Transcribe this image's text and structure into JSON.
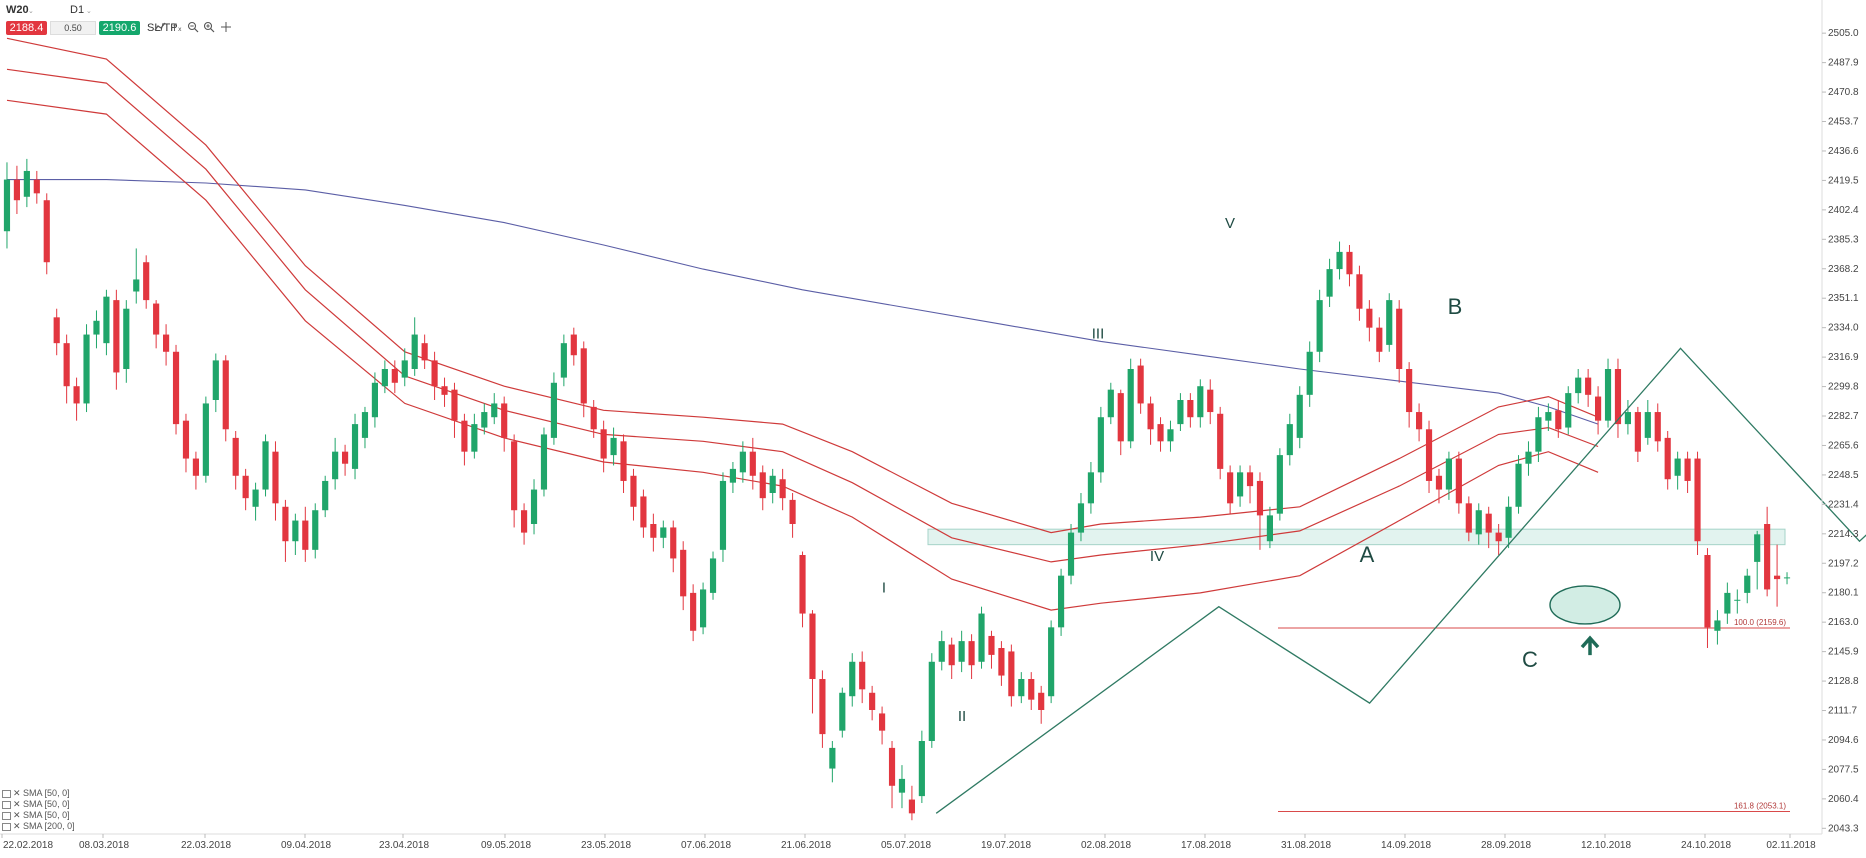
{
  "toolbar": {
    "symbol": "W20",
    "timeframe": "D1",
    "sell_price": "2188.4",
    "quantity": "0.50",
    "buy_price": "2190.6",
    "sltp_label": "SL/TP",
    "icons": [
      "line-chart-icon",
      "indicator-icon",
      "zoom-out-icon",
      "zoom-in-icon",
      "crosshair-icon"
    ]
  },
  "legend": [
    {
      "label": "SMA [50, 0]"
    },
    {
      "label": "SMA [50, 0]"
    },
    {
      "label": "SMA [50, 0]"
    },
    {
      "label": "SMA [200, 0]"
    }
  ],
  "colors": {
    "bull": "#20a56a",
    "bear": "#e2363f",
    "sma50": "#cf3a3a",
    "sma200": "#5b5ea6",
    "wave_line": "#2f7a63",
    "abc_line": "#7a2f3a",
    "zone_fill": "#dff2ee",
    "zone_border": "#9ccfc3",
    "fib_line": "#d94a4a"
  },
  "chart_data": {
    "type": "candlestick",
    "y_ticks": [
      "2505.0",
      "2487.9",
      "2470.8",
      "2453.7",
      "2436.6",
      "2419.5",
      "2402.4",
      "2385.3",
      "2368.2",
      "2351.1",
      "2334.0",
      "2316.9",
      "2299.8",
      "2282.7",
      "2265.6",
      "2248.5",
      "2231.4",
      "2214.3",
      "2197.2",
      "2180.1",
      "2163.0",
      "2145.9",
      "2128.8",
      "2111.7",
      "2094.6",
      "2077.5",
      "2060.4",
      "2043.3"
    ],
    "ylim": [
      2040,
      2508
    ],
    "x_ticks": [
      "22.02.2018",
      "08.03.2018",
      "22.03.2018",
      "09.04.2018",
      "23.04.2018",
      "09.05.2018",
      "23.05.2018",
      "07.06.2018",
      "21.06.2018",
      "05.07.2018",
      "19.07.2018",
      "02.08.2018",
      "17.08.2018",
      "31.08.2018",
      "14.09.2018",
      "28.09.2018",
      "12.10.2018",
      "24.10.2018",
      "02.11.2018"
    ],
    "candles": [
      [
        2390,
        2420,
        2380,
        2430
      ],
      [
        2420,
        2408,
        2400,
        2428
      ],
      [
        2410,
        2425,
        2404,
        2432
      ],
      [
        2420,
        2412,
        2406,
        2425
      ],
      [
        2408,
        2372,
        2365,
        2412
      ],
      [
        2340,
        2325,
        2318,
        2345
      ],
      [
        2325,
        2300,
        2290,
        2330
      ],
      [
        2300,
        2290,
        2280,
        2305
      ],
      [
        2290,
        2330,
        2285,
        2336
      ],
      [
        2330,
        2338,
        2322,
        2344
      ],
      [
        2325,
        2352,
        2318,
        2356
      ],
      [
        2350,
        2308,
        2298,
        2356
      ],
      [
        2310,
        2345,
        2302,
        2350
      ],
      [
        2355,
        2362,
        2348,
        2380
      ],
      [
        2372,
        2350,
        2345,
        2376
      ],
      [
        2348,
        2330,
        2322,
        2350
      ],
      [
        2330,
        2320,
        2312,
        2336
      ],
      [
        2320,
        2278,
        2272,
        2324
      ],
      [
        2280,
        2258,
        2250,
        2284
      ],
      [
        2258,
        2248,
        2240,
        2262
      ],
      [
        2248,
        2290,
        2244,
        2294
      ],
      [
        2292,
        2315,
        2285,
        2319
      ],
      [
        2315,
        2275,
        2268,
        2318
      ],
      [
        2270,
        2248,
        2240,
        2274
      ],
      [
        2248,
        2235,
        2228,
        2252
      ],
      [
        2230,
        2240,
        2222,
        2244
      ],
      [
        2240,
        2268,
        2236,
        2272
      ],
      [
        2262,
        2232,
        2222,
        2268
      ],
      [
        2230,
        2210,
        2198,
        2234
      ],
      [
        2210,
        2222,
        2202,
        2226
      ],
      [
        2222,
        2205,
        2198,
        2230
      ],
      [
        2205,
        2228,
        2200,
        2232
      ],
      [
        2228,
        2245,
        2224,
        2248
      ],
      [
        2246,
        2262,
        2240,
        2270
      ],
      [
        2262,
        2255,
        2248,
        2266
      ],
      [
        2252,
        2278,
        2246,
        2284
      ],
      [
        2270,
        2285,
        2264,
        2288
      ],
      [
        2282,
        2302,
        2276,
        2308
      ],
      [
        2300,
        2310,
        2296,
        2315
      ],
      [
        2310,
        2302,
        2296,
        2315
      ],
      [
        2305,
        2315,
        2300,
        2322
      ],
      [
        2310,
        2330,
        2306,
        2340
      ],
      [
        2325,
        2315,
        2310,
        2330
      ],
      [
        2315,
        2300,
        2292,
        2320
      ],
      [
        2300,
        2295,
        2288,
        2305
      ],
      [
        2298,
        2280,
        2270,
        2302
      ],
      [
        2280,
        2262,
        2254,
        2284
      ],
      [
        2262,
        2278,
        2258,
        2284
      ],
      [
        2276,
        2285,
        2272,
        2290
      ],
      [
        2282,
        2290,
        2278,
        2296
      ],
      [
        2290,
        2270,
        2262,
        2294
      ],
      [
        2268,
        2228,
        2218,
        2272
      ],
      [
        2228,
        2215,
        2208,
        2232
      ],
      [
        2220,
        2240,
        2214,
        2246
      ],
      [
        2240,
        2272,
        2236,
        2276
      ],
      [
        2270,
        2302,
        2266,
        2308
      ],
      [
        2305,
        2325,
        2300,
        2330
      ],
      [
        2330,
        2318,
        2312,
        2334
      ],
      [
        2322,
        2290,
        2282,
        2326
      ],
      [
        2288,
        2275,
        2270,
        2292
      ],
      [
        2275,
        2258,
        2250,
        2280
      ],
      [
        2260,
        2270,
        2254,
        2276
      ],
      [
        2268,
        2245,
        2238,
        2272
      ],
      [
        2248,
        2230,
        2222,
        2252
      ],
      [
        2236,
        2218,
        2212,
        2240
      ],
      [
        2220,
        2212,
        2204,
        2226
      ],
      [
        2212,
        2218,
        2206,
        2222
      ],
      [
        2218,
        2200,
        2192,
        2222
      ],
      [
        2205,
        2178,
        2170,
        2210
      ],
      [
        2180,
        2158,
        2152,
        2185
      ],
      [
        2160,
        2182,
        2156,
        2186
      ],
      [
        2180,
        2200,
        2176,
        2204
      ],
      [
        2205,
        2245,
        2198,
        2250
      ],
      [
        2244,
        2252,
        2238,
        2256
      ],
      [
        2250,
        2262,
        2244,
        2268
      ],
      [
        2262,
        2248,
        2240,
        2270
      ],
      [
        2250,
        2235,
        2228,
        2254
      ],
      [
        2238,
        2248,
        2232,
        2252
      ],
      [
        2246,
        2235,
        2228,
        2252
      ],
      [
        2234,
        2220,
        2212,
        2238
      ],
      [
        2202,
        2168,
        2160,
        2204
      ],
      [
        2168,
        2130,
        2110,
        2170
      ],
      [
        2130,
        2098,
        2090,
        2135
      ],
      [
        2078,
        2090,
        2070,
        2094
      ],
      [
        2100,
        2122,
        2096,
        2125
      ],
      [
        2120,
        2140,
        2114,
        2145
      ],
      [
        2140,
        2124,
        2116,
        2146
      ],
      [
        2122,
        2112,
        2106,
        2126
      ],
      [
        2110,
        2100,
        2092,
        2114
      ],
      [
        2090,
        2068,
        2055,
        2094
      ],
      [
        2064,
        2072,
        2055,
        2080
      ],
      [
        2060,
        2052,
        2048,
        2068
      ],
      [
        2062,
        2094,
        2058,
        2100
      ],
      [
        2094,
        2140,
        2090,
        2145
      ],
      [
        2140,
        2152,
        2135,
        2158
      ],
      [
        2150,
        2138,
        2130,
        2154
      ],
      [
        2140,
        2152,
        2134,
        2158
      ],
      [
        2152,
        2138,
        2130,
        2156
      ],
      [
        2140,
        2168,
        2136,
        2172
      ],
      [
        2155,
        2144,
        2136,
        2158
      ],
      [
        2148,
        2132,
        2126,
        2152
      ],
      [
        2146,
        2120,
        2114,
        2150
      ],
      [
        2120,
        2130,
        2116,
        2134
      ],
      [
        2130,
        2118,
        2112,
        2134
      ],
      [
        2122,
        2112,
        2104,
        2126
      ],
      [
        2120,
        2160,
        2116,
        2164
      ],
      [
        2160,
        2190,
        2155,
        2194
      ],
      [
        2190,
        2215,
        2185,
        2220
      ],
      [
        2215,
        2232,
        2210,
        2238
      ],
      [
        2232,
        2250,
        2226,
        2256
      ],
      [
        2250,
        2282,
        2244,
        2288
      ],
      [
        2282,
        2298,
        2278,
        2302
      ],
      [
        2296,
        2268,
        2260,
        2298
      ],
      [
        2268,
        2310,
        2264,
        2316
      ],
      [
        2312,
        2290,
        2284,
        2316
      ],
      [
        2290,
        2275,
        2266,
        2294
      ],
      [
        2278,
        2268,
        2262,
        2282
      ],
      [
        2268,
        2275,
        2262,
        2280
      ],
      [
        2278,
        2292,
        2274,
        2296
      ],
      [
        2292,
        2282,
        2276,
        2296
      ],
      [
        2282,
        2300,
        2276,
        2304
      ],
      [
        2298,
        2285,
        2278,
        2304
      ],
      [
        2284,
        2252,
        2246,
        2288
      ],
      [
        2250,
        2232,
        2226,
        2254
      ],
      [
        2236,
        2250,
        2230,
        2254
      ],
      [
        2250,
        2242,
        2232,
        2254
      ],
      [
        2245,
        2225,
        2205,
        2250
      ],
      [
        2210,
        2225,
        2206,
        2230
      ],
      [
        2226,
        2260,
        2222,
        2264
      ],
      [
        2260,
        2278,
        2254,
        2284
      ],
      [
        2270,
        2295,
        2264,
        2300
      ],
      [
        2295,
        2320,
        2288,
        2326
      ],
      [
        2320,
        2350,
        2314,
        2356
      ],
      [
        2352,
        2368,
        2346,
        2374
      ],
      [
        2368,
        2378,
        2362,
        2384
      ],
      [
        2378,
        2365,
        2358,
        2382
      ],
      [
        2365,
        2345,
        2338,
        2370
      ],
      [
        2345,
        2334,
        2326,
        2350
      ],
      [
        2334,
        2320,
        2314,
        2340
      ],
      [
        2324,
        2350,
        2320,
        2354
      ],
      [
        2345,
        2310,
        2302,
        2350
      ],
      [
        2310,
        2285,
        2276,
        2314
      ],
      [
        2285,
        2275,
        2268,
        2290
      ],
      [
        2275,
        2245,
        2238,
        2280
      ],
      [
        2248,
        2240,
        2232,
        2252
      ],
      [
        2240,
        2258,
        2234,
        2262
      ],
      [
        2258,
        2232,
        2226,
        2262
      ],
      [
        2232,
        2215,
        2210,
        2236
      ],
      [
        2214,
        2228,
        2208,
        2232
      ],
      [
        2226,
        2215,
        2206,
        2230
      ],
      [
        2215,
        2210,
        2202,
        2220
      ],
      [
        2212,
        2230,
        2206,
        2236
      ],
      [
        2230,
        2255,
        2226,
        2260
      ],
      [
        2255,
        2262,
        2248,
        2268
      ],
      [
        2262,
        2282,
        2256,
        2288
      ],
      [
        2280,
        2285,
        2274,
        2290
      ],
      [
        2286,
        2275,
        2270,
        2292
      ],
      [
        2276,
        2296,
        2272,
        2300
      ],
      [
        2296,
        2305,
        2290,
        2310
      ],
      [
        2305,
        2295,
        2288,
        2310
      ],
      [
        2294,
        2280,
        2272,
        2300
      ],
      [
        2280,
        2310,
        2276,
        2316
      ],
      [
        2310,
        2278,
        2270,
        2316
      ],
      [
        2278,
        2285,
        2272,
        2292
      ],
      [
        2285,
        2262,
        2256,
        2288
      ],
      [
        2270,
        2285,
        2266,
        2292
      ],
      [
        2285,
        2268,
        2262,
        2290
      ],
      [
        2270,
        2246,
        2240,
        2274
      ],
      [
        2248,
        2258,
        2240,
        2262
      ],
      [
        2258,
        2245,
        2238,
        2262
      ],
      [
        2258,
        2210,
        2202,
        2262
      ],
      [
        2202,
        2160,
        2148,
        2206
      ],
      [
        2158,
        2164,
        2150,
        2170
      ],
      [
        2168,
        2180,
        2162,
        2186
      ],
      [
        2176,
        2176,
        2168,
        2182
      ],
      [
        2180,
        2190,
        2174,
        2194
      ],
      [
        2198,
        2214,
        2182,
        2216
      ],
      [
        2220,
        2182,
        2178,
        2230
      ],
      [
        2190,
        2188,
        2172,
        2208
      ],
      [
        2189,
        2189,
        2185,
        2192
      ]
    ],
    "series": [
      {
        "name": "SMA [50, 0]",
        "type": "line",
        "key": "sma50_upper"
      },
      {
        "name": "SMA [50, 0]",
        "type": "line",
        "key": "sma50_mid"
      },
      {
        "name": "SMA [50, 0]",
        "type": "line",
        "key": "sma50_lower"
      },
      {
        "name": "SMA [200, 0]",
        "type": "line",
        "key": "sma200"
      }
    ],
    "sma200": [
      [
        0,
        2420
      ],
      [
        10,
        2420
      ],
      [
        20,
        2418
      ],
      [
        30,
        2414
      ],
      [
        40,
        2405
      ],
      [
        50,
        2395
      ],
      [
        60,
        2382
      ],
      [
        70,
        2368
      ],
      [
        80,
        2356
      ],
      [
        90,
        2346
      ],
      [
        100,
        2336
      ],
      [
        110,
        2326
      ],
      [
        120,
        2318
      ],
      [
        130,
        2310
      ],
      [
        140,
        2303
      ],
      [
        150,
        2296
      ],
      [
        155,
        2288
      ],
      [
        160,
        2278
      ]
    ],
    "sma50_upper": [
      [
        0,
        2502
      ],
      [
        10,
        2490
      ],
      [
        20,
        2440
      ],
      [
        30,
        2370
      ],
      [
        40,
        2320
      ],
      [
        50,
        2300
      ],
      [
        60,
        2286
      ],
      [
        70,
        2282
      ],
      [
        78,
        2278
      ],
      [
        85,
        2262
      ],
      [
        95,
        2232
      ],
      [
        105,
        2215
      ],
      [
        110,
        2220
      ],
      [
        120,
        2224
      ],
      [
        130,
        2230
      ],
      [
        140,
        2258
      ],
      [
        150,
        2288
      ],
      [
        155,
        2294
      ],
      [
        160,
        2282
      ]
    ],
    "sma50_mid": [
      [
        0,
        2484
      ],
      [
        10,
        2476
      ],
      [
        20,
        2426
      ],
      [
        30,
        2356
      ],
      [
        40,
        2306
      ],
      [
        50,
        2286
      ],
      [
        60,
        2272
      ],
      [
        70,
        2268
      ],
      [
        78,
        2262
      ],
      [
        85,
        2244
      ],
      [
        95,
        2212
      ],
      [
        105,
        2198
      ],
      [
        110,
        2202
      ],
      [
        120,
        2208
      ],
      [
        130,
        2216
      ],
      [
        140,
        2242
      ],
      [
        150,
        2272
      ],
      [
        155,
        2276
      ],
      [
        160,
        2265
      ]
    ],
    "sma50_lower": [
      [
        0,
        2466
      ],
      [
        10,
        2458
      ],
      [
        20,
        2408
      ],
      [
        30,
        2338
      ],
      [
        40,
        2290
      ],
      [
        50,
        2270
      ],
      [
        60,
        2256
      ],
      [
        70,
        2250
      ],
      [
        78,
        2242
      ],
      [
        85,
        2224
      ],
      [
        95,
        2188
      ],
      [
        105,
        2170
      ],
      [
        110,
        2174
      ],
      [
        120,
        2180
      ],
      [
        130,
        2190
      ],
      [
        140,
        2222
      ],
      [
        150,
        2254
      ],
      [
        155,
        2262
      ],
      [
        160,
        2250
      ]
    ],
    "zone": {
      "low": 2208,
      "high": 2217
    },
    "fib_levels": [
      {
        "label": "100.0 (2159.6)",
        "value": 2159.6
      },
      {
        "label": "161.8 (2053.1)",
        "value": 2053.1
      }
    ],
    "waves": [
      {
        "label": "I",
        "value": 2172
      },
      {
        "label": "II",
        "value": 2116
      },
      {
        "label": "III",
        "value": 2322
      },
      {
        "label": "IV",
        "value": 2210
      },
      {
        "label": "V",
        "value": 2385
      },
      {
        "label": "A",
        "value": 2212
      },
      {
        "label": "B",
        "value": 2335
      },
      {
        "label": "C",
        "value": 2152
      }
    ]
  }
}
